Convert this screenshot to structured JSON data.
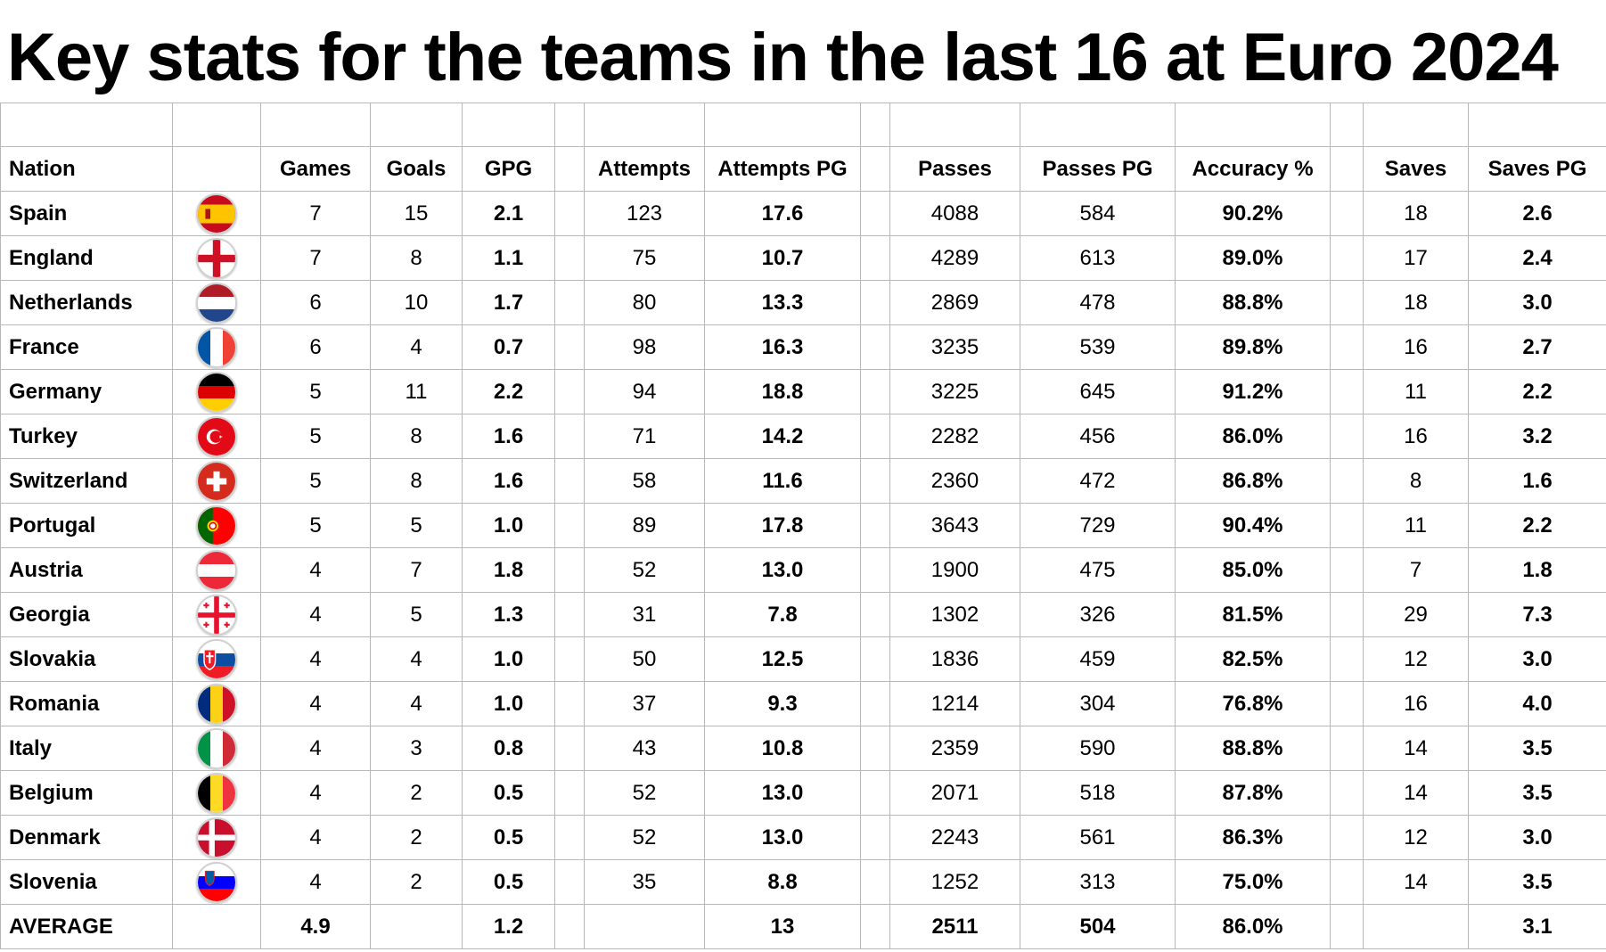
{
  "title": "Key stats for the teams in the last 16 at Euro 2024",
  "headers": {
    "nation": "Nation",
    "flag": "",
    "games": "Games",
    "goals": "Goals",
    "gpg": "GPG",
    "attempts": "Attempts",
    "attempts_pg": "Attempts PG",
    "passes": "Passes",
    "passes_pg": "Passes PG",
    "accuracy": "Accuracy %",
    "saves": "Saves",
    "saves_pg": "Saves PG"
  },
  "rows": [
    {
      "nation": "Spain",
      "flag": "spain-flag-icon",
      "games": "7",
      "goals": "15",
      "gpg": "2.1",
      "attempts": "123",
      "attempts_pg": "17.6",
      "passes": "4088",
      "passes_pg": "584",
      "accuracy": "90.2%",
      "saves": "18",
      "saves_pg": "2.6"
    },
    {
      "nation": "England",
      "flag": "england-flag-icon",
      "games": "7",
      "goals": "8",
      "gpg": "1.1",
      "attempts": "75",
      "attempts_pg": "10.7",
      "passes": "4289",
      "passes_pg": "613",
      "accuracy": "89.0%",
      "saves": "17",
      "saves_pg": "2.4"
    },
    {
      "nation": "Netherlands",
      "flag": "netherlands-flag-icon",
      "games": "6",
      "goals": "10",
      "gpg": "1.7",
      "attempts": "80",
      "attempts_pg": "13.3",
      "passes": "2869",
      "passes_pg": "478",
      "accuracy": "88.8%",
      "saves": "18",
      "saves_pg": "3.0"
    },
    {
      "nation": "France",
      "flag": "france-flag-icon",
      "games": "6",
      "goals": "4",
      "gpg": "0.7",
      "attempts": "98",
      "attempts_pg": "16.3",
      "passes": "3235",
      "passes_pg": "539",
      "accuracy": "89.8%",
      "saves": "16",
      "saves_pg": "2.7"
    },
    {
      "nation": "Germany",
      "flag": "germany-flag-icon",
      "games": "5",
      "goals": "11",
      "gpg": "2.2",
      "attempts": "94",
      "attempts_pg": "18.8",
      "passes": "3225",
      "passes_pg": "645",
      "accuracy": "91.2%",
      "saves": "11",
      "saves_pg": "2.2"
    },
    {
      "nation": "Turkey",
      "flag": "turkey-flag-icon",
      "games": "5",
      "goals": "8",
      "gpg": "1.6",
      "attempts": "71",
      "attempts_pg": "14.2",
      "passes": "2282",
      "passes_pg": "456",
      "accuracy": "86.0%",
      "saves": "16",
      "saves_pg": "3.2"
    },
    {
      "nation": "Switzerland",
      "flag": "switzerland-flag-icon",
      "games": "5",
      "goals": "8",
      "gpg": "1.6",
      "attempts": "58",
      "attempts_pg": "11.6",
      "passes": "2360",
      "passes_pg": "472",
      "accuracy": "86.8%",
      "saves": "8",
      "saves_pg": "1.6"
    },
    {
      "nation": "Portugal",
      "flag": "portugal-flag-icon",
      "games": "5",
      "goals": "5",
      "gpg": "1.0",
      "attempts": "89",
      "attempts_pg": "17.8",
      "passes": "3643",
      "passes_pg": "729",
      "accuracy": "90.4%",
      "saves": "11",
      "saves_pg": "2.2"
    },
    {
      "nation": "Austria",
      "flag": "austria-flag-icon",
      "games": "4",
      "goals": "7",
      "gpg": "1.8",
      "attempts": "52",
      "attempts_pg": "13.0",
      "passes": "1900",
      "passes_pg": "475",
      "accuracy": "85.0%",
      "saves": "7",
      "saves_pg": "1.8"
    },
    {
      "nation": "Georgia",
      "flag": "georgia-flag-icon",
      "games": "4",
      "goals": "5",
      "gpg": "1.3",
      "attempts": "31",
      "attempts_pg": "7.8",
      "passes": "1302",
      "passes_pg": "326",
      "accuracy": "81.5%",
      "saves": "29",
      "saves_pg": "7.3"
    },
    {
      "nation": "Slovakia",
      "flag": "slovakia-flag-icon",
      "games": "4",
      "goals": "4",
      "gpg": "1.0",
      "attempts": "50",
      "attempts_pg": "12.5",
      "passes": "1836",
      "passes_pg": "459",
      "accuracy": "82.5%",
      "saves": "12",
      "saves_pg": "3.0"
    },
    {
      "nation": "Romania",
      "flag": "romania-flag-icon",
      "games": "4",
      "goals": "4",
      "gpg": "1.0",
      "attempts": "37",
      "attempts_pg": "9.3",
      "passes": "1214",
      "passes_pg": "304",
      "accuracy": "76.8%",
      "saves": "16",
      "saves_pg": "4.0"
    },
    {
      "nation": "Italy",
      "flag": "italy-flag-icon",
      "games": "4",
      "goals": "3",
      "gpg": "0.8",
      "attempts": "43",
      "attempts_pg": "10.8",
      "passes": "2359",
      "passes_pg": "590",
      "accuracy": "88.8%",
      "saves": "14",
      "saves_pg": "3.5"
    },
    {
      "nation": "Belgium",
      "flag": "belgium-flag-icon",
      "games": "4",
      "goals": "2",
      "gpg": "0.5",
      "attempts": "52",
      "attempts_pg": "13.0",
      "passes": "2071",
      "passes_pg": "518",
      "accuracy": "87.8%",
      "saves": "14",
      "saves_pg": "3.5"
    },
    {
      "nation": "Denmark",
      "flag": "denmark-flag-icon",
      "games": "4",
      "goals": "2",
      "gpg": "0.5",
      "attempts": "52",
      "attempts_pg": "13.0",
      "passes": "2243",
      "passes_pg": "561",
      "accuracy": "86.3%",
      "saves": "12",
      "saves_pg": "3.0"
    },
    {
      "nation": "Slovenia",
      "flag": "slovenia-flag-icon",
      "games": "4",
      "goals": "2",
      "gpg": "0.5",
      "attempts": "35",
      "attempts_pg": "8.8",
      "passes": "1252",
      "passes_pg": "313",
      "accuracy": "75.0%",
      "saves": "14",
      "saves_pg": "3.5"
    }
  ],
  "average": {
    "label": "AVERAGE",
    "games": "4.9",
    "goals": "",
    "gpg": "1.2",
    "attempts": "",
    "attempts_pg": "13",
    "passes": "2511",
    "passes_pg": "504",
    "accuracy": "86.0%",
    "saves": "",
    "saves_pg": "3.1"
  },
  "colors": {
    "grid_line": "#b7b7b7",
    "background": "#ffffff",
    "text": "#000000"
  }
}
